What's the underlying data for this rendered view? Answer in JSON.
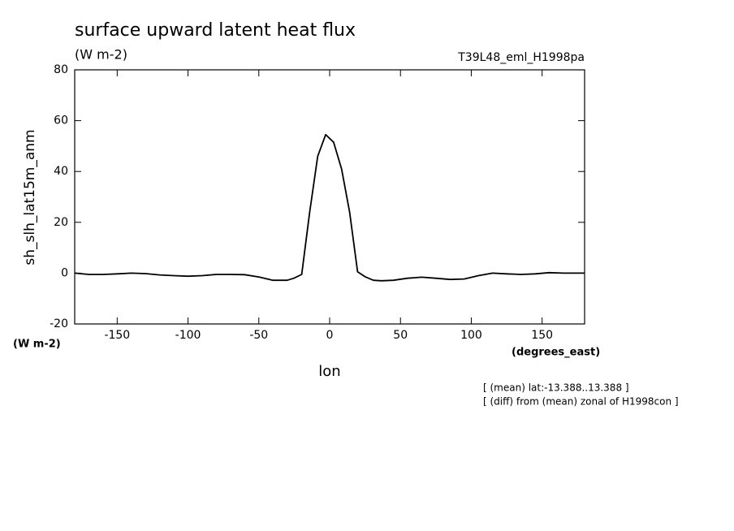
{
  "chart_data": {
    "type": "line",
    "title": "surface upward latent heat flux",
    "subtitle": "(W m-2)",
    "annotation": "T39L48_eml_H1998pa",
    "y_label": "sh_slh_lat15m_anm",
    "y_units": "(W m-2)",
    "x_label": "lon",
    "x_units": "(degrees_east)",
    "notes": [
      "[ (mean) lat:-13.388..13.388 ]",
      "[ (diff) from (mean) zonal of H1998con ]"
    ],
    "x": [
      -180,
      -170,
      -160,
      -150,
      -140,
      -130,
      -120,
      -110,
      -100,
      -90,
      -80,
      -70,
      -60,
      -50,
      -40,
      -30,
      -25.3,
      -19.7,
      -14.1,
      -8.4,
      -2.8,
      2.8,
      8.4,
      14.1,
      19.7,
      25.3,
      30.9,
      36.6,
      45,
      55,
      65,
      75,
      85,
      95,
      105,
      115,
      125,
      135,
      145,
      155,
      165,
      180
    ],
    "series": [
      {
        "name": "sh_slh_lat15m_anm",
        "color": "#000000",
        "values": [
          0,
          -0.5,
          -0.5,
          -0.3,
          0,
          -0.2,
          -0.7,
          -1,
          -1.2,
          -1,
          -0.5,
          -0.5,
          -0.6,
          -1.5,
          -2.8,
          -2.8,
          -2,
          -0.5,
          24,
          46,
          54.5,
          51.5,
          41,
          24,
          0.5,
          -1.5,
          -2.8,
          -3,
          -2.8,
          -2,
          -1.6,
          -2,
          -2.5,
          -2.3,
          -1,
          0,
          -0.3,
          -0.5,
          -0.3,
          0.2,
          0,
          0
        ]
      }
    ],
    "xlim": [
      -180,
      180
    ],
    "xticks": [
      -150,
      -100,
      -50,
      0,
      50,
      100,
      150
    ],
    "ylim": [
      -20,
      80
    ],
    "yticks": [
      -20,
      0,
      20,
      40,
      60,
      80
    ]
  }
}
